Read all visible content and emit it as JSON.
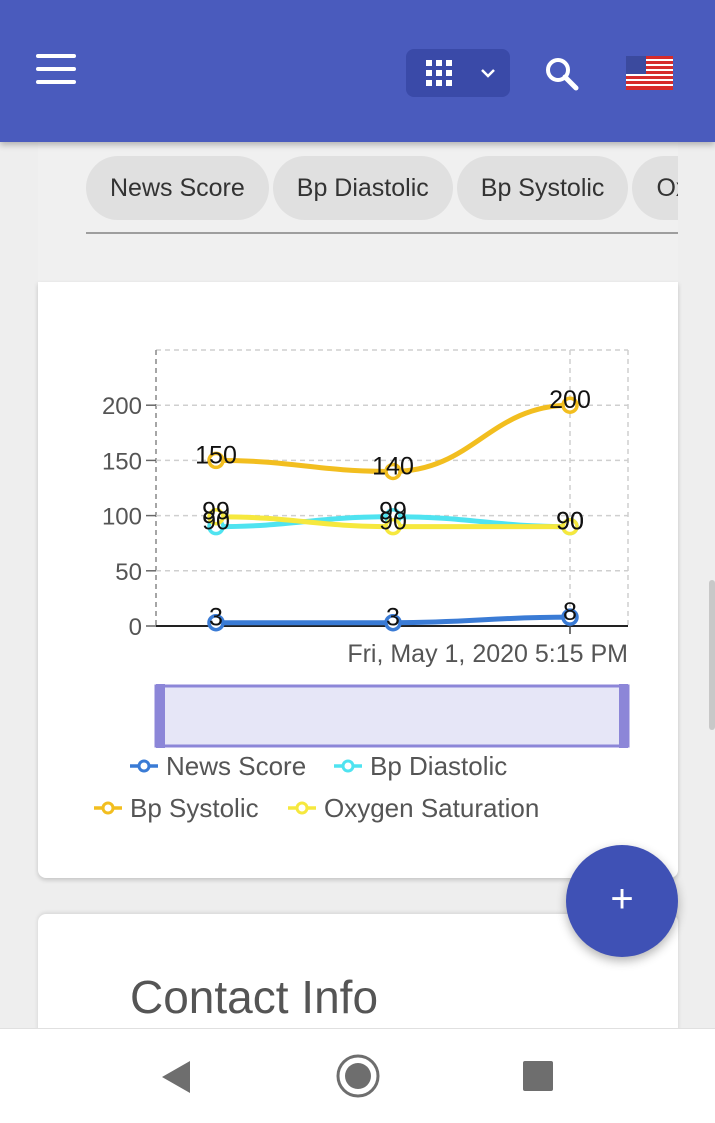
{
  "header": {
    "menu_icon": "hamburger-menu-icon",
    "apps_icon": "apps-grid-icon",
    "dropdown_icon": "chevron-down-icon",
    "search_icon": "search-icon",
    "flag_icon": "us-flag-icon",
    "color": "#4a5bbd"
  },
  "tabs": [
    {
      "label": "News Score"
    },
    {
      "label": "Bp Diastolic"
    },
    {
      "label": "Bp Systolic"
    },
    {
      "label": "Oxygen Saturation"
    }
  ],
  "chart_data": {
    "type": "line",
    "title": "",
    "xlabel": "",
    "ylabel": "",
    "x": [
      "",
      "",
      "Fri, May 1, 2020 5:15 PM"
    ],
    "ylim": [
      0,
      250
    ],
    "yticks": [
      0,
      50,
      100,
      150,
      200
    ],
    "grid": true,
    "legend_position": "bottom",
    "series": [
      {
        "name": "News Score",
        "color": "#3a7bd5",
        "values": [
          3,
          3,
          8
        ]
      },
      {
        "name": "Bp Diastolic",
        "color": "#4fe3f0",
        "values": [
          90,
          99,
          90
        ]
      },
      {
        "name": "Bp Systolic",
        "color": "#f2be1f",
        "values": [
          150,
          140,
          200
        ]
      },
      {
        "name": "Oxygen Saturation",
        "color": "#f6e83e",
        "values": [
          99,
          90,
          90
        ]
      }
    ],
    "data_labels": [
      {
        "series": "News Score",
        "labels": [
          "3",
          "3",
          "8"
        ]
      },
      {
        "series": "Bp Diastolic",
        "labels": [
          "90",
          "99",
          "90"
        ]
      },
      {
        "series": "Bp Systolic",
        "labels": [
          "150",
          "140",
          "200"
        ]
      },
      {
        "series": "Oxygen Saturation",
        "labels": [
          "99",
          "90",
          "90"
        ]
      }
    ],
    "zoom_slider": true
  },
  "contact": {
    "title": "Contact Info"
  },
  "fab": {
    "label": "+",
    "icon": "plus-icon"
  },
  "navigation": {
    "back_icon": "back-triangle-icon",
    "home_icon": "home-circle-icon",
    "recents_icon": "recents-square-icon"
  }
}
